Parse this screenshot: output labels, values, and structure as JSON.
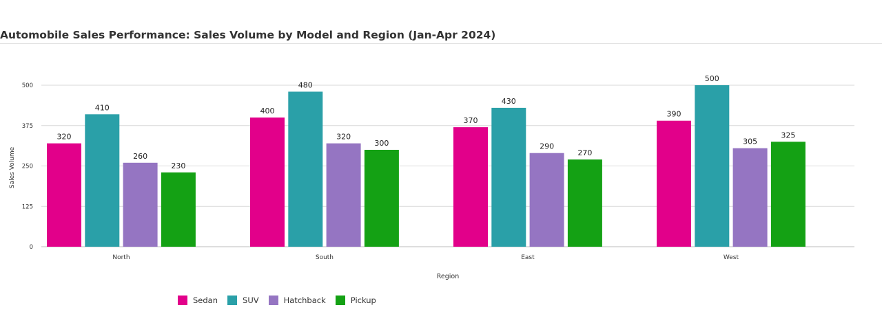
{
  "chart_data": {
    "type": "bar",
    "title": "Automobile Sales Performance: Sales Volume by Model and Region (Jan-Apr 2024)",
    "xlabel": "Region",
    "ylabel": "Sales Volume",
    "categories": [
      "North",
      "South",
      "East",
      "West"
    ],
    "series": [
      {
        "name": "Sedan",
        "color": "#e2008a",
        "values": [
          320,
          400,
          370,
          390
        ]
      },
      {
        "name": "SUV",
        "color": "#2aa0a8",
        "values": [
          410,
          480,
          430,
          500
        ]
      },
      {
        "name": "Hatchback",
        "color": "#9575c2",
        "values": [
          260,
          320,
          290,
          305
        ]
      },
      {
        "name": "Pickup",
        "color": "#14a114",
        "values": [
          230,
          300,
          270,
          325
        ]
      }
    ],
    "yticks": [
      0,
      125,
      250,
      375,
      500
    ],
    "ylim": [
      0,
      500
    ],
    "grid": true,
    "legend_position": "bottom"
  }
}
